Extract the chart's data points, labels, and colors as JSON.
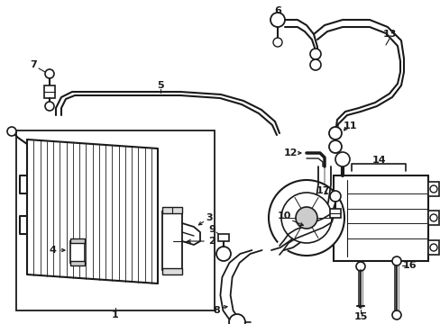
{
  "bg_color": "#ffffff",
  "line_color": "#1a1a1a",
  "fig_w": 4.89,
  "fig_h": 3.6,
  "dpi": 100
}
